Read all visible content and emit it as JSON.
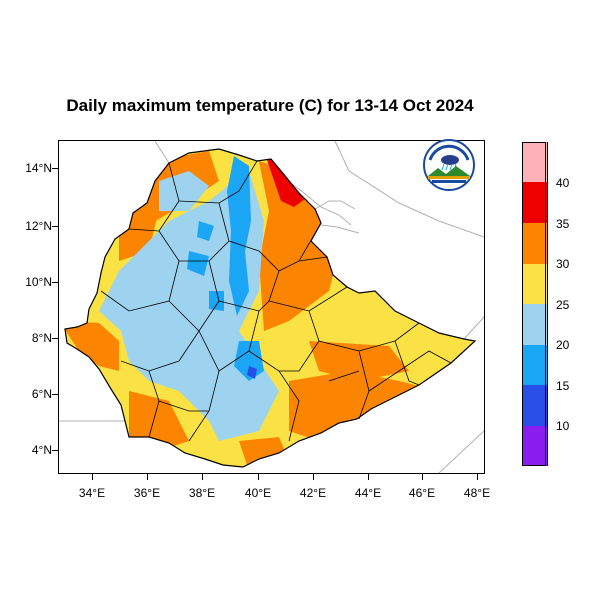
{
  "title": "Daily maximum temperature (C) for 13-14 Oct 2024",
  "lat_labels": [
    "14°N",
    "12°N",
    "10°N",
    "8°N",
    "6°N",
    "4°N"
  ],
  "lon_labels": [
    "34°E",
    "36°E",
    "38°E",
    "40°E",
    "42°E",
    "44°E",
    "46°E",
    "48°E"
  ],
  "legend": {
    "labels": [
      "10",
      "15",
      "20",
      "25",
      "30",
      "35",
      "40"
    ],
    "colors": [
      "#8a1ef0",
      "#2a4ee8",
      "#1aa6f5",
      "#9dd3ef",
      "#fbe244",
      "#fb8400",
      "#ee0000",
      "#fcb2b8"
    ]
  },
  "logo_alt": "Ethiopian Meteorology Institute logo",
  "colors": {
    "hot_orange": "#fb8400",
    "warm_yellow": "#fbe244",
    "mild_blue": "#9dd3ef",
    "cool_blue": "#1aa6f5",
    "cold_blue": "#2a4ee8",
    "very_hot_red": "#ee0000"
  }
}
